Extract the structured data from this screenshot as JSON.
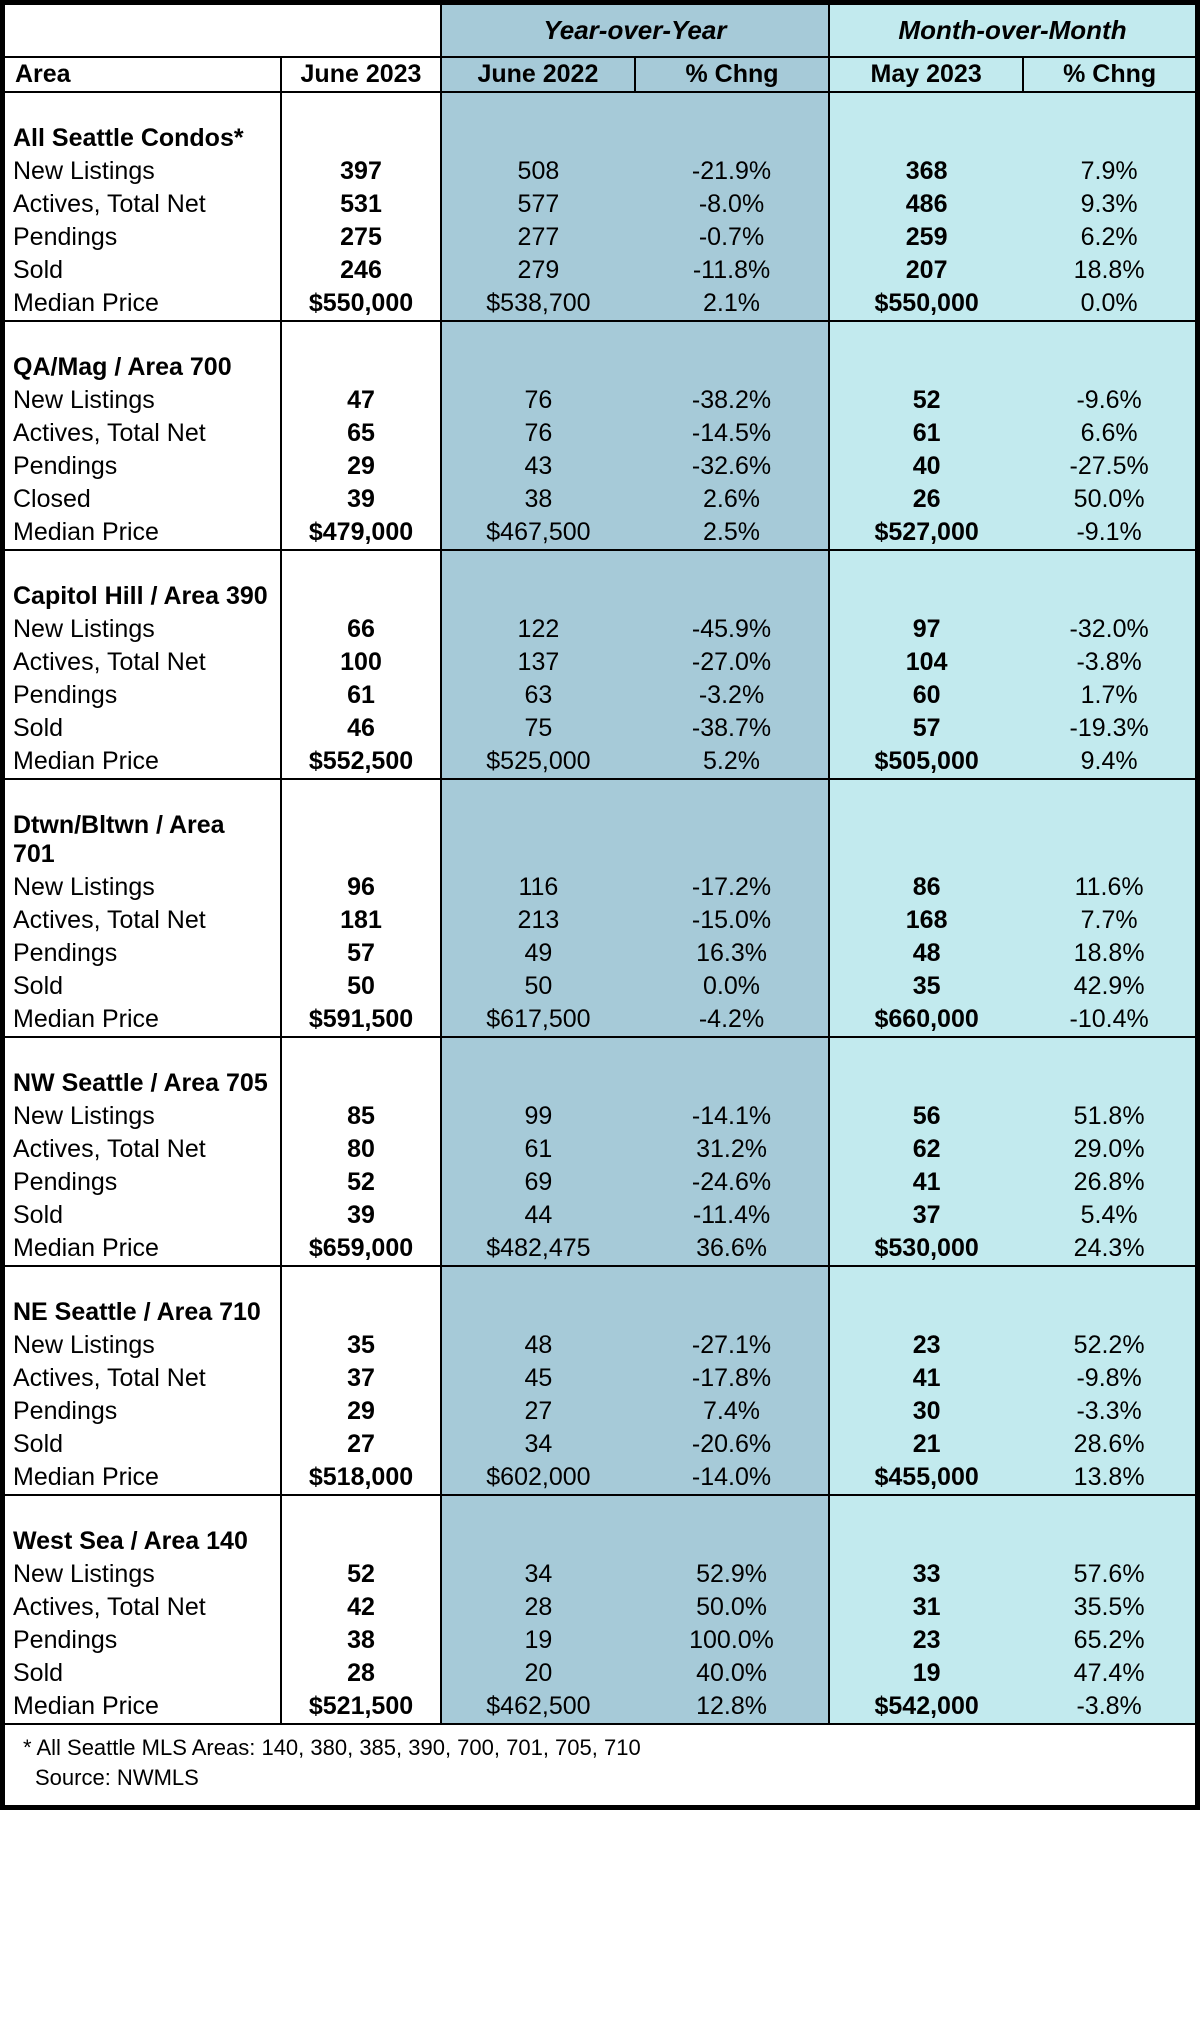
{
  "colors": {
    "yoy_bg": "#a6cad8",
    "mom_bg": "#c2eaee",
    "border": "#000000",
    "text": "#000000"
  },
  "fonts": {
    "family": "Arial",
    "base_size_pt": 18,
    "header_size_pt": 19
  },
  "headers": {
    "area": "Area",
    "current": "June 2023",
    "yoy_group": "Year-over-Year",
    "yoy_col1": "June 2022",
    "yoy_col2": "% Chng",
    "mom_group": "Month-over-Month",
    "mom_col1": "May 2023",
    "mom_col2": "% Chng"
  },
  "sections": [
    {
      "title": "All Seattle Condos*",
      "rows": [
        {
          "label": "New Listings",
          "cur": "397",
          "yoy1": "508",
          "yoy2": "-21.9%",
          "mom1": "368",
          "mom2": "7.9%"
        },
        {
          "label": "Actives, Total Net",
          "cur": "531",
          "yoy1": "577",
          "yoy2": "-8.0%",
          "mom1": "486",
          "mom2": "9.3%"
        },
        {
          "label": "Pendings",
          "cur": "275",
          "yoy1": "277",
          "yoy2": "-0.7%",
          "mom1": "259",
          "mom2": "6.2%"
        },
        {
          "label": "Sold",
          "cur": "246",
          "yoy1": "279",
          "yoy2": "-11.8%",
          "mom1": "207",
          "mom2": "18.8%"
        },
        {
          "label": "Median Price",
          "cur": "$550,000",
          "yoy1": "$538,700",
          "yoy2": "2.1%",
          "mom1": "$550,000",
          "mom2": "0.0%"
        }
      ]
    },
    {
      "title": "QA/Mag  / Area 700",
      "rows": [
        {
          "label": "New Listings",
          "cur": "47",
          "yoy1": "76",
          "yoy2": "-38.2%",
          "mom1": "52",
          "mom2": "-9.6%"
        },
        {
          "label": "Actives, Total Net",
          "cur": "65",
          "yoy1": "76",
          "yoy2": "-14.5%",
          "mom1": "61",
          "mom2": "6.6%"
        },
        {
          "label": "Pendings",
          "cur": "29",
          "yoy1": "43",
          "yoy2": "-32.6%",
          "mom1": "40",
          "mom2": "-27.5%"
        },
        {
          "label": "Closed",
          "cur": "39",
          "yoy1": "38",
          "yoy2": "2.6%",
          "mom1": "26",
          "mom2": "50.0%"
        },
        {
          "label": "Median Price",
          "cur": "$479,000",
          "yoy1": "$467,500",
          "yoy2": "2.5%",
          "mom1": "$527,000",
          "mom2": "-9.1%"
        }
      ]
    },
    {
      "title": "Capitol Hill / Area 390",
      "rows": [
        {
          "label": "New Listings",
          "cur": "66",
          "yoy1": "122",
          "yoy2": "-45.9%",
          "mom1": "97",
          "mom2": "-32.0%"
        },
        {
          "label": "Actives, Total Net",
          "cur": "100",
          "yoy1": "137",
          "yoy2": "-27.0%",
          "mom1": "104",
          "mom2": "-3.8%"
        },
        {
          "label": "Pendings",
          "cur": "61",
          "yoy1": "63",
          "yoy2": "-3.2%",
          "mom1": "60",
          "mom2": "1.7%"
        },
        {
          "label": "Sold",
          "cur": "46",
          "yoy1": "75",
          "yoy2": "-38.7%",
          "mom1": "57",
          "mom2": "-19.3%"
        },
        {
          "label": "Median Price",
          "cur": "$552,500",
          "yoy1": "$525,000",
          "yoy2": "5.2%",
          "mom1": "$505,000",
          "mom2": "9.4%"
        }
      ]
    },
    {
      "title": "Dtwn/Bltwn / Area 701",
      "rows": [
        {
          "label": "New Listings",
          "cur": "96",
          "yoy1": "116",
          "yoy2": "-17.2%",
          "mom1": "86",
          "mom2": "11.6%"
        },
        {
          "label": "Actives, Total Net",
          "cur": "181",
          "yoy1": "213",
          "yoy2": "-15.0%",
          "mom1": "168",
          "mom2": "7.7%"
        },
        {
          "label": "Pendings",
          "cur": "57",
          "yoy1": "49",
          "yoy2": "16.3%",
          "mom1": "48",
          "mom2": "18.8%"
        },
        {
          "label": "Sold",
          "cur": "50",
          "yoy1": "50",
          "yoy2": "0.0%",
          "mom1": "35",
          "mom2": "42.9%"
        },
        {
          "label": "Median Price",
          "cur": "$591,500",
          "yoy1": "$617,500",
          "yoy2": "-4.2%",
          "mom1": "$660,000",
          "mom2": "-10.4%"
        }
      ]
    },
    {
      "title": "NW Seattle / Area 705",
      "rows": [
        {
          "label": "New Listings",
          "cur": "85",
          "yoy1": "99",
          "yoy2": "-14.1%",
          "mom1": "56",
          "mom2": "51.8%"
        },
        {
          "label": "Actives, Total Net",
          "cur": "80",
          "yoy1": "61",
          "yoy2": "31.2%",
          "mom1": "62",
          "mom2": "29.0%"
        },
        {
          "label": "Pendings",
          "cur": "52",
          "yoy1": "69",
          "yoy2": "-24.6%",
          "mom1": "41",
          "mom2": "26.8%"
        },
        {
          "label": "Sold",
          "cur": "39",
          "yoy1": "44",
          "yoy2": "-11.4%",
          "mom1": "37",
          "mom2": "5.4%"
        },
        {
          "label": "Median Price",
          "cur": "$659,000",
          "yoy1": "$482,475",
          "yoy2": "36.6%",
          "mom1": "$530,000",
          "mom2": "24.3%"
        }
      ]
    },
    {
      "title": "NE Seattle  / Area 710",
      "rows": [
        {
          "label": "New Listings",
          "cur": "35",
          "yoy1": "48",
          "yoy2": "-27.1%",
          "mom1": "23",
          "mom2": "52.2%"
        },
        {
          "label": "Actives, Total Net",
          "cur": "37",
          "yoy1": "45",
          "yoy2": "-17.8%",
          "mom1": "41",
          "mom2": "-9.8%"
        },
        {
          "label": "Pendings",
          "cur": "29",
          "yoy1": "27",
          "yoy2": "7.4%",
          "mom1": "30",
          "mom2": "-3.3%"
        },
        {
          "label": "Sold",
          "cur": "27",
          "yoy1": "34",
          "yoy2": "-20.6%",
          "mom1": "21",
          "mom2": "28.6%"
        },
        {
          "label": "Median Price",
          "cur": "$518,000",
          "yoy1": "$602,000",
          "yoy2": "-14.0%",
          "mom1": "$455,000",
          "mom2": "13.8%"
        }
      ]
    },
    {
      "title": "West Sea / Area 140",
      "rows": [
        {
          "label": "New Listings",
          "cur": "52",
          "yoy1": "34",
          "yoy2": "52.9%",
          "mom1": "33",
          "mom2": "57.6%"
        },
        {
          "label": "Actives, Total Net",
          "cur": "42",
          "yoy1": "28",
          "yoy2": "50.0%",
          "mom1": "31",
          "mom2": "35.5%"
        },
        {
          "label": "Pendings",
          "cur": "38",
          "yoy1": "19",
          "yoy2": "100.0%",
          "mom1": "23",
          "mom2": "65.2%"
        },
        {
          "label": "Sold",
          "cur": "28",
          "yoy1": "20",
          "yoy2": "40.0%",
          "mom1": "19",
          "mom2": "47.4%"
        },
        {
          "label": "Median Price",
          "cur": "$521,500",
          "yoy1": "$462,500",
          "yoy2": "12.8%",
          "mom1": "$542,000",
          "mom2": "-3.8%"
        }
      ]
    }
  ],
  "footer": {
    "note": "*  All Seattle MLS Areas: 140, 380, 385, 390, 700, 701, 705, 710",
    "source": "Source: NWMLS"
  }
}
